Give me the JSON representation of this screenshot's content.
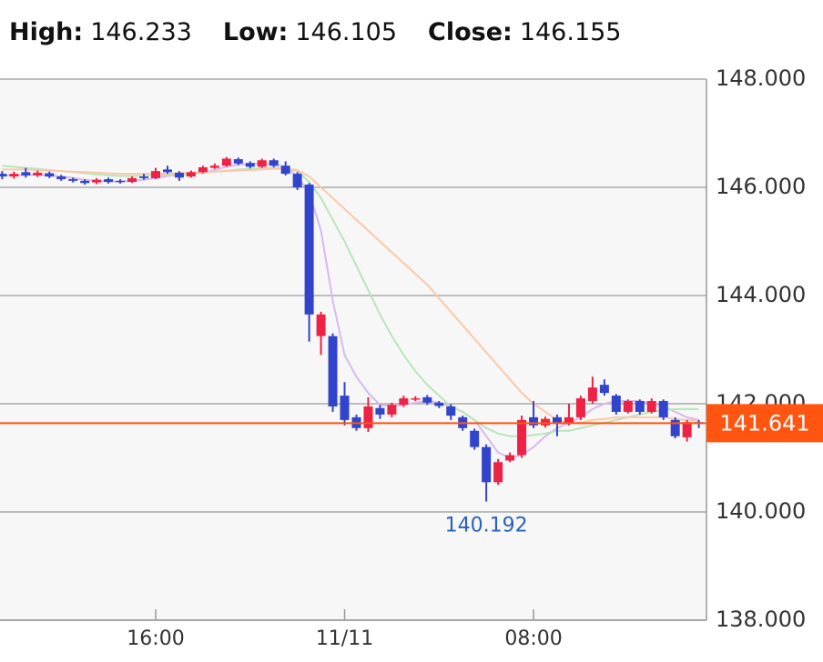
{
  "header": {
    "high_label": "High:",
    "high": 146.233,
    "low_label": "Low:",
    "low": 146.105,
    "close_label": "Close:",
    "close": 146.155
  },
  "chart_data": {
    "type": "candlestick",
    "categories": [
      null,
      null,
      null,
      null,
      null,
      null,
      null,
      null,
      null,
      null,
      null,
      null,
      null,
      "16:00",
      null,
      null,
      null,
      null,
      null,
      null,
      null,
      null,
      null,
      null,
      null,
      null,
      null,
      null,
      null,
      "11/11",
      null,
      null,
      null,
      null,
      null,
      null,
      null,
      null,
      null,
      null,
      null,
      null,
      null,
      null,
      null,
      "08:00",
      null,
      null,
      null,
      null,
      null,
      null,
      null,
      null,
      null,
      null,
      null,
      null,
      null,
      null
    ],
    "open": [
      146.25,
      146.2,
      146.28,
      146.22,
      146.26,
      146.2,
      146.15,
      146.12,
      146.09,
      146.15,
      146.12,
      146.1,
      146.2,
      146.17,
      146.33,
      146.27,
      146.2,
      146.28,
      146.36,
      146.4,
      146.52,
      146.45,
      146.38,
      146.5,
      146.4,
      146.25,
      146.05,
      143.25,
      143.25,
      142.15,
      141.75,
      141.55,
      141.92,
      141.8,
      141.98,
      142.08,
      142.12,
      142.02,
      141.95,
      141.75,
      141.5,
      141.2,
      140.55,
      140.95,
      141.05,
      141.75,
      141.6,
      141.75,
      141.65,
      141.75,
      142.05,
      142.35,
      142.15,
      141.85,
      142.05,
      141.85,
      142.05,
      141.7,
      141.38,
      141.66
    ],
    "high": [
      146.3,
      146.29,
      146.36,
      146.31,
      146.29,
      146.23,
      146.18,
      146.15,
      146.17,
      146.18,
      146.15,
      146.2,
      146.25,
      146.36,
      146.4,
      146.3,
      146.31,
      146.4,
      146.44,
      146.56,
      146.55,
      146.48,
      146.53,
      146.53,
      146.48,
      146.28,
      146.08,
      143.7,
      143.3,
      142.4,
      141.8,
      142.12,
      141.98,
      142.02,
      142.15,
      142.14,
      142.16,
      142.05,
      141.99,
      141.78,
      141.54,
      141.25,
      140.98,
      141.1,
      141.78,
      142.05,
      141.76,
      141.8,
      142.0,
      142.15,
      142.5,
      142.45,
      142.18,
      142.08,
      142.08,
      142.1,
      142.08,
      141.75,
      141.7,
      141.7
    ],
    "low": [
      146.15,
      146.16,
      146.18,
      146.19,
      146.17,
      146.12,
      146.09,
      146.05,
      146.06,
      146.07,
      146.07,
      146.08,
      146.14,
      146.15,
      146.25,
      146.12,
      146.18,
      146.26,
      146.34,
      146.38,
      146.41,
      146.35,
      146.36,
      146.37,
      146.22,
      145.95,
      143.15,
      142.9,
      141.85,
      141.6,
      141.5,
      141.48,
      141.72,
      141.75,
      141.94,
      142.05,
      141.98,
      141.92,
      141.7,
      141.5,
      141.15,
      140.192,
      140.5,
      140.92,
      141.0,
      141.55,
      141.56,
      141.4,
      141.6,
      141.7,
      142.0,
      142.15,
      141.8,
      141.82,
      141.8,
      141.82,
      141.7,
      141.36,
      141.3,
      141.55
    ],
    "close": [
      146.2,
      146.25,
      146.22,
      146.27,
      146.2,
      146.15,
      146.12,
      146.08,
      146.14,
      146.1,
      146.1,
      146.17,
      146.17,
      146.3,
      146.28,
      146.18,
      146.28,
      146.37,
      146.4,
      146.53,
      146.44,
      146.38,
      146.5,
      146.4,
      146.25,
      146.0,
      143.65,
      143.65,
      141.95,
      141.7,
      141.55,
      141.95,
      141.8,
      141.98,
      142.1,
      142.1,
      142.02,
      141.96,
      141.78,
      141.55,
      141.2,
      140.55,
      140.92,
      141.05,
      141.7,
      141.6,
      141.72,
      141.65,
      141.75,
      142.1,
      142.3,
      142.2,
      141.85,
      142.05,
      141.85,
      142.05,
      141.75,
      141.4,
      141.66,
      141.641
    ],
    "up_color": "#ee2244",
    "down_color": "#3344cc",
    "series": [
      {
        "color": "#d9b8f0",
        "values": [
          146.22,
          146.22,
          146.23,
          146.23,
          146.22,
          146.2,
          146.17,
          146.14,
          146.12,
          146.11,
          146.11,
          146.12,
          146.14,
          146.17,
          146.21,
          146.23,
          146.24,
          146.27,
          146.32,
          146.38,
          146.42,
          146.43,
          146.44,
          146.42,
          146.38,
          146.2,
          145.9,
          145.2,
          143.9,
          142.9,
          142.5,
          142.2,
          141.98,
          141.95,
          141.98,
          142.02,
          142.05,
          142.02,
          141.95,
          141.85,
          141.7,
          141.4,
          141.1,
          141.0,
          141.05,
          141.2,
          141.4,
          141.55,
          141.65,
          141.75,
          141.9,
          142.0,
          142.05,
          142.05,
          142.05,
          142.0,
          141.95,
          141.85,
          141.75,
          141.7
        ]
      },
      {
        "color": "#b8e6b8",
        "values": [
          146.4,
          146.38,
          146.36,
          146.34,
          146.32,
          146.3,
          146.28,
          146.26,
          146.24,
          146.22,
          146.21,
          146.21,
          146.21,
          146.22,
          146.23,
          146.24,
          146.25,
          146.27,
          146.29,
          146.31,
          146.33,
          146.34,
          146.35,
          146.36,
          146.35,
          146.3,
          146.1,
          145.8,
          145.4,
          145.0,
          144.55,
          144.1,
          143.65,
          143.25,
          142.9,
          142.6,
          142.35,
          142.15,
          141.95,
          141.85,
          141.7,
          141.55,
          141.45,
          141.4,
          141.4,
          141.42,
          141.45,
          141.5,
          141.5,
          141.55,
          141.6,
          141.65,
          141.7,
          141.75,
          141.8,
          141.85,
          141.88,
          141.9,
          141.9,
          141.9
        ]
      },
      {
        "color": "#fcc8a8",
        "values": [
          146.33,
          146.33,
          146.33,
          146.32,
          146.31,
          146.3,
          146.29,
          146.28,
          146.27,
          146.26,
          146.25,
          146.25,
          146.25,
          146.25,
          146.25,
          146.26,
          146.27,
          146.28,
          146.29,
          146.3,
          146.31,
          146.32,
          146.33,
          146.34,
          146.35,
          146.32,
          146.2,
          146.0,
          145.8,
          145.6,
          145.4,
          145.2,
          145.0,
          144.8,
          144.6,
          144.4,
          144.2,
          143.95,
          143.7,
          143.45,
          143.2,
          142.95,
          142.7,
          142.45,
          142.2,
          142.0,
          141.85,
          141.7,
          141.65,
          141.65,
          141.7,
          141.72,
          141.75,
          141.75,
          141.75,
          141.75,
          141.75,
          141.72,
          141.7,
          141.68
        ]
      }
    ],
    "last_price": 141.641,
    "last_color": "#ff5511",
    "min_annotation": 140.192,
    "annotation_color": "#2a62b8",
    "ylim": [
      138,
      148
    ],
    "yticks": [
      {
        "value": 138,
        "label": "138.000"
      },
      {
        "value": 140,
        "label": "140.000"
      },
      {
        "value": 142,
        "label": "142.000"
      },
      {
        "value": 144,
        "label": "144.000"
      },
      {
        "value": 146,
        "label": "146.000"
      },
      {
        "value": 148,
        "label": "148.000"
      }
    ],
    "grid": true
  }
}
